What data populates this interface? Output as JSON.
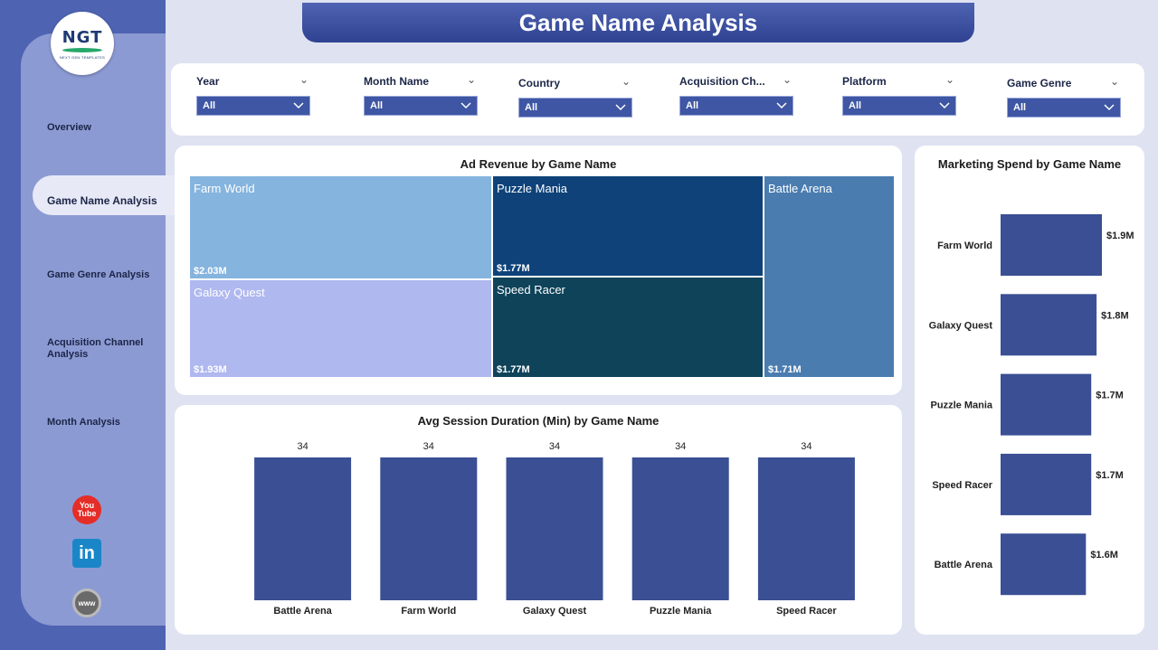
{
  "header": {
    "title": "Game Name Analysis"
  },
  "logo": {
    "text": "NGT",
    "subtitle": "NEXT GEN TEMPLATES"
  },
  "sidebar": {
    "items": [
      {
        "label": "Overview"
      },
      {
        "label": "Game Name Analysis",
        "active": true
      },
      {
        "label": "Game Genre Analysis"
      },
      {
        "label": "Acquisition Channel Analysis"
      },
      {
        "label": "Month Analysis"
      }
    ],
    "social": [
      {
        "icon": "youtube-icon",
        "text": "You Tube"
      },
      {
        "icon": "linkedin-icon",
        "text": "in"
      },
      {
        "icon": "globe-icon",
        "text": "www"
      }
    ]
  },
  "filters": [
    {
      "label": "Year",
      "value": "All"
    },
    {
      "label": "Month Name",
      "value": "All"
    },
    {
      "label": "Country",
      "value": "All"
    },
    {
      "label": "Acquisition Ch...",
      "value": "All"
    },
    {
      "label": "Platform",
      "value": "All"
    },
    {
      "label": "Game Genre",
      "value": "All"
    }
  ],
  "colors": {
    "accent": "#3e56a3",
    "sidebar": "#4e63b2",
    "background": "#dfe2f1",
    "bar": "#3a4f94"
  },
  "chart_data": [
    {
      "type": "treemap",
      "title": "Ad Revenue by Game Name",
      "items": [
        {
          "name": "Farm World",
          "value": 2.03,
          "label": "$2.03M",
          "color": "#85b4de"
        },
        {
          "name": "Galaxy Quest",
          "value": 1.93,
          "label": "$1.93M",
          "color": "#b0b8f0"
        },
        {
          "name": "Puzzle Mania",
          "value": 1.77,
          "label": "$1.77M",
          "color": "#0e4279"
        },
        {
          "name": "Speed Racer",
          "value": 1.77,
          "label": "$1.77M",
          "color": "#0e435a"
        },
        {
          "name": "Battle Arena",
          "value": 1.71,
          "label": "$1.71M",
          "color": "#4a7cb0"
        }
      ]
    },
    {
      "type": "bar",
      "title": "Avg Session Duration (Min) by Game Name",
      "categories": [
        "Battle Arena",
        "Farm World",
        "Galaxy Quest",
        "Puzzle Mania",
        "Speed Racer"
      ],
      "values": [
        34,
        34,
        34,
        34,
        34
      ],
      "labels": [
        "34",
        "34",
        "34",
        "34",
        "34"
      ],
      "ylim": [
        0,
        34
      ]
    },
    {
      "type": "bar",
      "orientation": "horizontal",
      "title": "Marketing Spend by Game Name",
      "categories": [
        "Farm World",
        "Galaxy Quest",
        "Puzzle Mania",
        "Speed Racer",
        "Battle Arena"
      ],
      "values": [
        1.9,
        1.8,
        1.7,
        1.7,
        1.6
      ],
      "labels": [
        "$1.9M",
        "$1.8M",
        "$1.7M",
        "$1.7M",
        "$1.6M"
      ],
      "xlim": [
        0,
        1.9
      ]
    }
  ]
}
